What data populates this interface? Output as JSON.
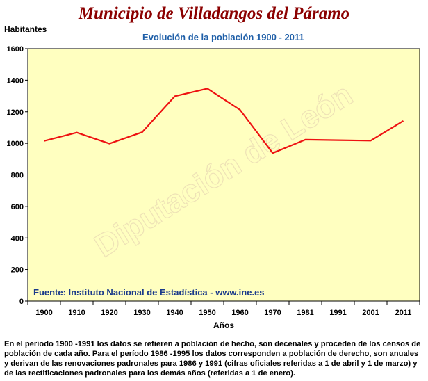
{
  "title": "Municipio de Villadangos del Páramo",
  "watermark": "Diputación de León",
  "footnote": "En el período 1900 -1991 los datos se refieren a población de hecho, son decenales y proceden de los censos de población de cada año. Para el período 1986 -1995 los datos corresponden a población de derecho, son anuales y derivan de las renovaciones padronales para 1986 y 1991 (cifras oficiales referidas a 1 de abril y 1 de marzo) y de las rectificaciones padronales para los demás años (referidas a 1 de enero).",
  "chart_data": {
    "type": "line",
    "title": "Evolución de la población 1900 - 2011",
    "ylabel": "Habitantes",
    "xlabel": "Años",
    "source": "Fuente: Instituto Nacional de Estadística - www.ine.es",
    "categories": [
      "1900",
      "1910",
      "1920",
      "1930",
      "1940",
      "1950",
      "1960",
      "1970",
      "1981",
      "1991",
      "2001",
      "2011"
    ],
    "series": [
      {
        "values": [
          1015,
          1068,
          998,
          1070,
          1298,
          1347,
          1212,
          938,
          1023,
          1020,
          1017,
          1142
        ],
        "color": "#ee1111"
      }
    ],
    "ylim": [
      0,
      1600
    ],
    "yticks": [
      0,
      200,
      400,
      600,
      800,
      1000,
      1200,
      1400,
      1600
    ],
    "grid": false,
    "plot_background": "#ffffc0",
    "legend": "none"
  }
}
